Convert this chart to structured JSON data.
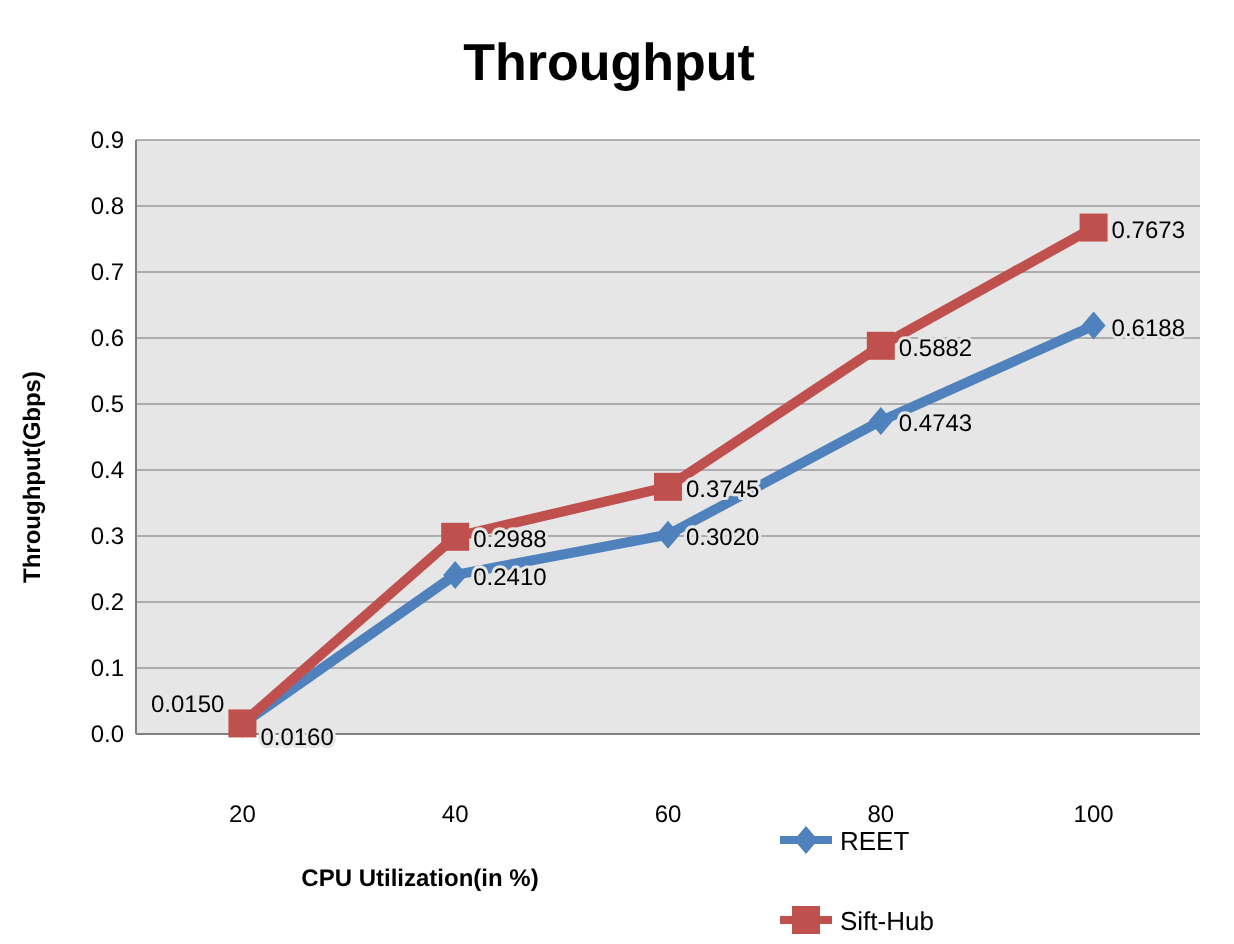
{
  "chart_data": {
    "type": "line",
    "title": "Throughput",
    "xlabel": "CPU Utilization(in %)",
    "ylabel": "Throughput(Gbps)",
    "categories": [
      "20",
      "40",
      "60",
      "80",
      "100"
    ],
    "ylim": [
      0,
      0.9
    ],
    "yticks": [
      {
        "value": 0,
        "label": "0.0"
      },
      {
        "value": 0.1,
        "label": "0.1"
      },
      {
        "value": 0.2,
        "label": "0.2"
      },
      {
        "value": 0.3,
        "label": "0.3"
      },
      {
        "value": 0.4,
        "label": "0.4"
      },
      {
        "value": 0.5,
        "label": "0.5"
      },
      {
        "value": 0.6,
        "label": "0.6"
      },
      {
        "value": 0.7,
        "label": "0.7"
      },
      {
        "value": 0.8,
        "label": "0.8"
      },
      {
        "value": 0.9,
        "label": "0.9"
      }
    ],
    "grid": "y",
    "legend": "bottom right",
    "series": [
      {
        "name": "REET",
        "color": "#4f81bd",
        "marker": "diamond",
        "values": [
          0.015,
          0.241,
          0.302,
          0.4743,
          0.6188
        ],
        "value_labels": [
          "0.0150",
          "0.2410",
          "0.3020",
          "0.4743",
          "0.6188"
        ]
      },
      {
        "name": "Sift-Hub",
        "color": "#c0504d",
        "marker": "square",
        "values": [
          0.016,
          0.2988,
          0.3745,
          0.5882,
          0.7673
        ],
        "value_labels": [
          "0.0160",
          "0.2988",
          "0.3745",
          "0.5882",
          "0.7673"
        ]
      }
    ]
  }
}
